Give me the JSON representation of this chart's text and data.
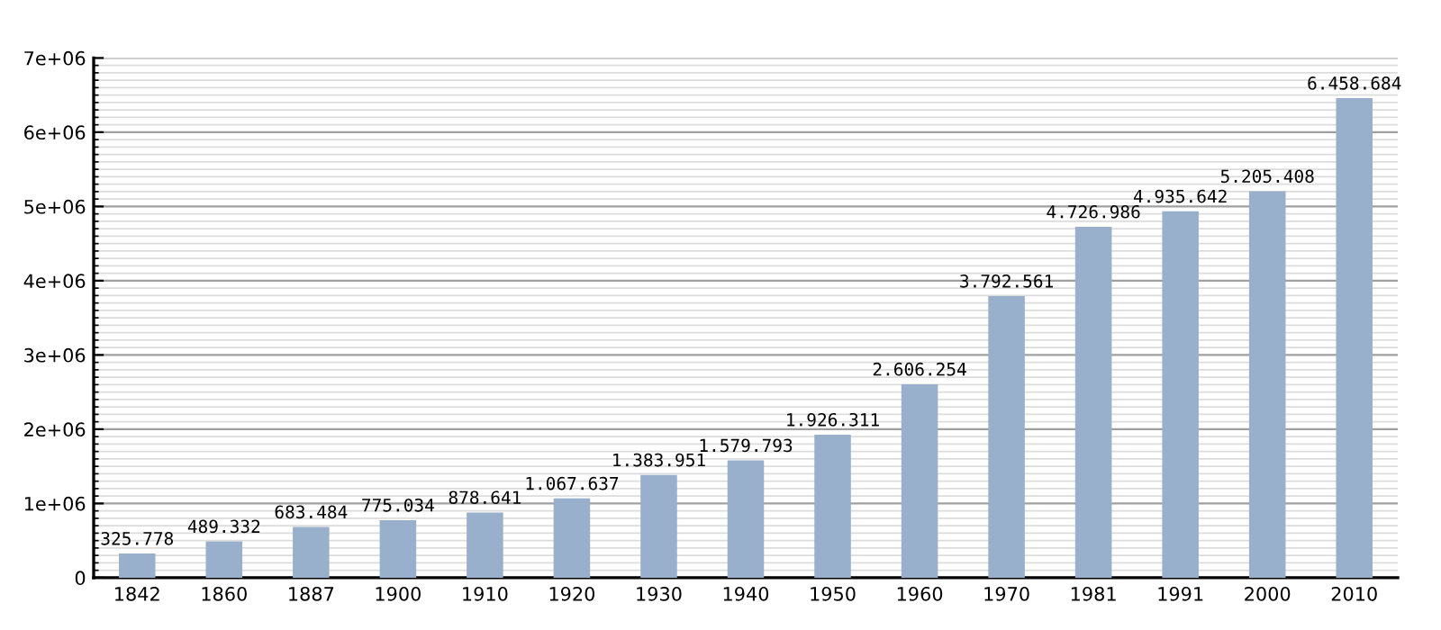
{
  "chart_data": {
    "type": "bar",
    "categories": [
      "1842",
      "1860",
      "1887",
      "1900",
      "1910",
      "1920",
      "1930",
      "1940",
      "1950",
      "1960",
      "1970",
      "1981",
      "1991",
      "2000",
      "2010"
    ],
    "values": [
      325778,
      489332,
      683484,
      775034,
      878641,
      1067637,
      1383951,
      1579793,
      1926311,
      2606254,
      3792561,
      4726986,
      4935642,
      5205408,
      6458684
    ],
    "value_labels": [
      "325.778",
      "489.332",
      "683.484",
      "775.034",
      "878.641",
      "1.067.637",
      "1.383.951",
      "1.579.793",
      "1.926.311",
      "2.606.254",
      "3.792.561",
      "4.726.986",
      "4.935.642",
      "5.205.408",
      "6.458.684"
    ],
    "color": "#98b0cc",
    "ylim": [
      0,
      7000000
    ],
    "yticks": [
      {
        "value": 0,
        "label": "0"
      },
      {
        "value": 1000000,
        "label": "1e+06"
      },
      {
        "value": 2000000,
        "label": "2e+06"
      },
      {
        "value": 3000000,
        "label": "3e+06"
      },
      {
        "value": 4000000,
        "label": "4e+06"
      },
      {
        "value": 5000000,
        "label": "5e+06"
      },
      {
        "value": 6000000,
        "label": "6e+06"
      },
      {
        "value": 7000000,
        "label": "7e+06"
      }
    ],
    "grid": "y"
  }
}
